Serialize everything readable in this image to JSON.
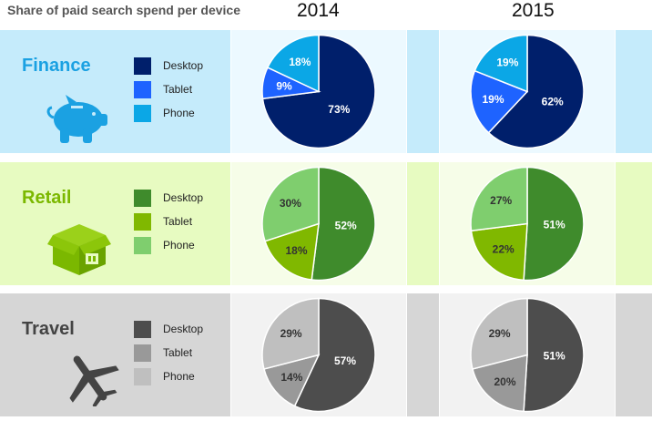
{
  "chart_data": {
    "type": "pie",
    "title": "Share of paid search spend per device",
    "columns": [
      "2014",
      "2015"
    ],
    "rows": [
      {
        "category": "Finance",
        "icon": "piggy-bank-icon",
        "label_color": "#1ba1e2",
        "band_color": "#c5ebfb",
        "cell_color": "#ecf9ff",
        "label_text_color": "#ffffff",
        "legend": [
          {
            "name": "Desktop",
            "color": "#001f6b"
          },
          {
            "name": "Tablet",
            "color": "#1e63ff"
          },
          {
            "name": "Phone",
            "color": "#0ba7e6"
          }
        ],
        "pies": [
          {
            "year": "2014",
            "values": [
              73,
              9,
              18
            ],
            "labels": [
              "73%",
              "9%",
              "18%"
            ]
          },
          {
            "year": "2015",
            "values": [
              62,
              19,
              19
            ],
            "labels": [
              "62%",
              "19%",
              "19%"
            ]
          }
        ]
      },
      {
        "category": "Retail",
        "icon": "package-box-icon",
        "label_color": "#7bb800",
        "band_color": "#e7fbc1",
        "cell_color": "#f6fde8",
        "label_text_color": "#222222",
        "legend": [
          {
            "name": "Desktop",
            "color": "#3f8b2c"
          },
          {
            "name": "Tablet",
            "color": "#80b800"
          },
          {
            "name": "Phone",
            "color": "#7fce6e"
          }
        ],
        "pies": [
          {
            "year": "2014",
            "values": [
              52,
              18,
              30
            ],
            "labels": [
              "52%",
              "18%",
              "30%"
            ]
          },
          {
            "year": "2015",
            "values": [
              51,
              22,
              27
            ],
            "labels": [
              "51%",
              "22%",
              "27%"
            ]
          }
        ]
      },
      {
        "category": "Travel",
        "icon": "airplane-icon",
        "label_color": "#444444",
        "band_color": "#d6d6d6",
        "cell_color": "#f2f2f2",
        "label_text_color": "#222222",
        "legend": [
          {
            "name": "Desktop",
            "color": "#4d4d4d"
          },
          {
            "name": "Tablet",
            "color": "#999999"
          },
          {
            "name": "Phone",
            "color": "#bfbfbf"
          }
        ],
        "pies": [
          {
            "year": "2014",
            "values": [
              57,
              14,
              29
            ],
            "labels": [
              "57%",
              "14%",
              "29%"
            ]
          },
          {
            "year": "2015",
            "values": [
              51,
              20,
              29
            ],
            "labels": [
              "51%",
              "20%",
              "29%"
            ]
          }
        ]
      }
    ]
  }
}
